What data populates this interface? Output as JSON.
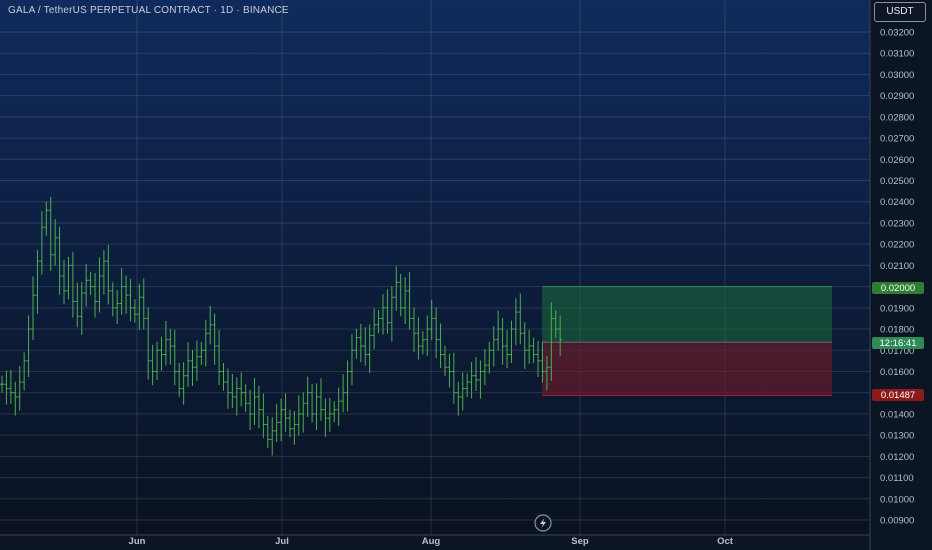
{
  "header": {
    "title": "GALA / TetherUS PERPETUAL CONTRACT · 1D · BINANCE",
    "currency": "USDT"
  },
  "badges": {
    "target_label": "0.02000",
    "countdown_label": "12:16:41",
    "stop_label": "0.01487"
  },
  "colors": {
    "background_top": "#0f2a5c",
    "background_bottom": "#0a1220",
    "candle": "#4caf50",
    "target_zone": "#1e6b3a",
    "stop_zone": "#6b1a2a",
    "target_badge": "#2e7d32",
    "stop_badge": "#8b1a1a"
  },
  "chart_data": {
    "type": "ohlc",
    "ylim": [
      0.0085,
      0.0335
    ],
    "y_ticks": [
      "0.00900",
      "0.01000",
      "0.01100",
      "0.01200",
      "0.01300",
      "0.01400",
      "0.01500",
      "0.01600",
      "0.01700",
      "0.01800",
      "0.01900",
      "0.02000",
      "0.02100",
      "0.02200",
      "0.02300",
      "0.02400",
      "0.02500",
      "0.02600",
      "0.02700",
      "0.02800",
      "0.02900",
      "0.03000",
      "0.03100",
      "0.03200"
    ],
    "x_labels": [
      "Jun",
      "Jul",
      "Aug",
      "Sep",
      "Oct"
    ],
    "closes": [
      0.0154,
      0.0152,
      0.015,
      0.0148,
      0.0155,
      0.0165,
      0.018,
      0.0196,
      0.0212,
      0.0228,
      0.0236,
      0.0215,
      0.0223,
      0.0205,
      0.0198,
      0.021,
      0.0193,
      0.0186,
      0.0197,
      0.0203,
      0.02,
      0.0193,
      0.0205,
      0.0212,
      0.0198,
      0.019,
      0.0192,
      0.02,
      0.0196,
      0.019,
      0.0187,
      0.0195,
      0.0185,
      0.0165,
      0.016,
      0.017,
      0.0168,
      0.0175,
      0.0172,
      0.016,
      0.0152,
      0.0158,
      0.0165,
      0.0162,
      0.0167,
      0.017,
      0.0178,
      0.0182,
      0.0172,
      0.016,
      0.0155,
      0.015,
      0.0148,
      0.0152,
      0.015,
      0.0145,
      0.014,
      0.0148,
      0.0142,
      0.0135,
      0.0128,
      0.0132,
      0.0136,
      0.0142,
      0.0138,
      0.0133,
      0.0135,
      0.014,
      0.0145,
      0.015,
      0.014,
      0.0148,
      0.0142,
      0.0138,
      0.014,
      0.0142,
      0.0146,
      0.015,
      0.016,
      0.017,
      0.0176,
      0.0172,
      0.0168,
      0.0177,
      0.0182,
      0.0185,
      0.019,
      0.0183,
      0.0195,
      0.0202,
      0.019,
      0.0198,
      0.0185,
      0.0178,
      0.0172,
      0.0175,
      0.018,
      0.0185,
      0.0175,
      0.0168,
      0.0162,
      0.016,
      0.015,
      0.0148,
      0.0152,
      0.0155,
      0.0158,
      0.0156,
      0.016,
      0.0163,
      0.017,
      0.0175,
      0.018,
      0.0172,
      0.0168,
      0.018,
      0.0188,
      0.0178,
      0.017,
      0.0172,
      0.0168,
      0.0165,
      0.016,
      0.0162,
      0.0185,
      0.018,
      0.0175
    ],
    "target_zone": {
      "from": 0.01738,
      "to": 0.02
    },
    "stop_zone": {
      "from": 0.01487,
      "to": 0.01738
    },
    "last_price": 0.01738
  }
}
